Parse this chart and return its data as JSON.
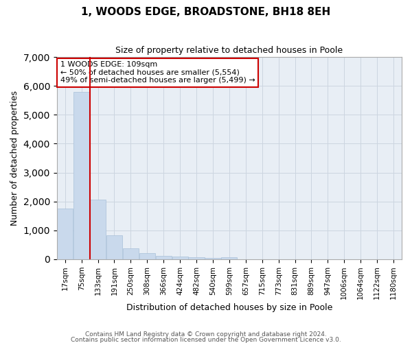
{
  "title": "1, WOODS EDGE, BROADSTONE, BH18 8EH",
  "subtitle": "Size of property relative to detached houses in Poole",
  "xlabel": "Distribution of detached houses by size in Poole",
  "ylabel": "Number of detached properties",
  "footer_line1": "Contains HM Land Registry data © Crown copyright and database right 2024.",
  "footer_line2": "Contains public sector information licensed under the Open Government Licence v3.0.",
  "annotation_line1": "1 WOODS EDGE: 109sqm",
  "annotation_line2": "← 50% of detached houses are smaller (5,554)",
  "annotation_line3": "49% of semi-detached houses are larger (5,499) →",
  "vline_bar_index": 1.5,
  "bar_color": "#c9d9ec",
  "bar_edgecolor": "#a8c0d8",
  "vline_color": "#cc0000",
  "categories": [
    "17sqm",
    "75sqm",
    "133sqm",
    "191sqm",
    "250sqm",
    "308sqm",
    "366sqm",
    "424sqm",
    "482sqm",
    "540sqm",
    "599sqm",
    "657sqm",
    "715sqm",
    "773sqm",
    "831sqm",
    "889sqm",
    "947sqm",
    "1006sqm",
    "1064sqm",
    "1122sqm",
    "1180sqm"
  ],
  "values": [
    1760,
    5780,
    2060,
    820,
    380,
    220,
    110,
    105,
    60,
    50,
    60,
    0,
    0,
    0,
    0,
    0,
    0,
    0,
    0,
    0,
    0
  ],
  "ylim": [
    0,
    7000
  ],
  "yticks": [
    0,
    1000,
    2000,
    3000,
    4000,
    5000,
    6000,
    7000
  ],
  "grid_color": "#ccd5e0",
  "bg_color": "#e8eef5",
  "annotation_box_facecolor": "#ffffff",
  "annotation_box_edgecolor": "#cc0000"
}
